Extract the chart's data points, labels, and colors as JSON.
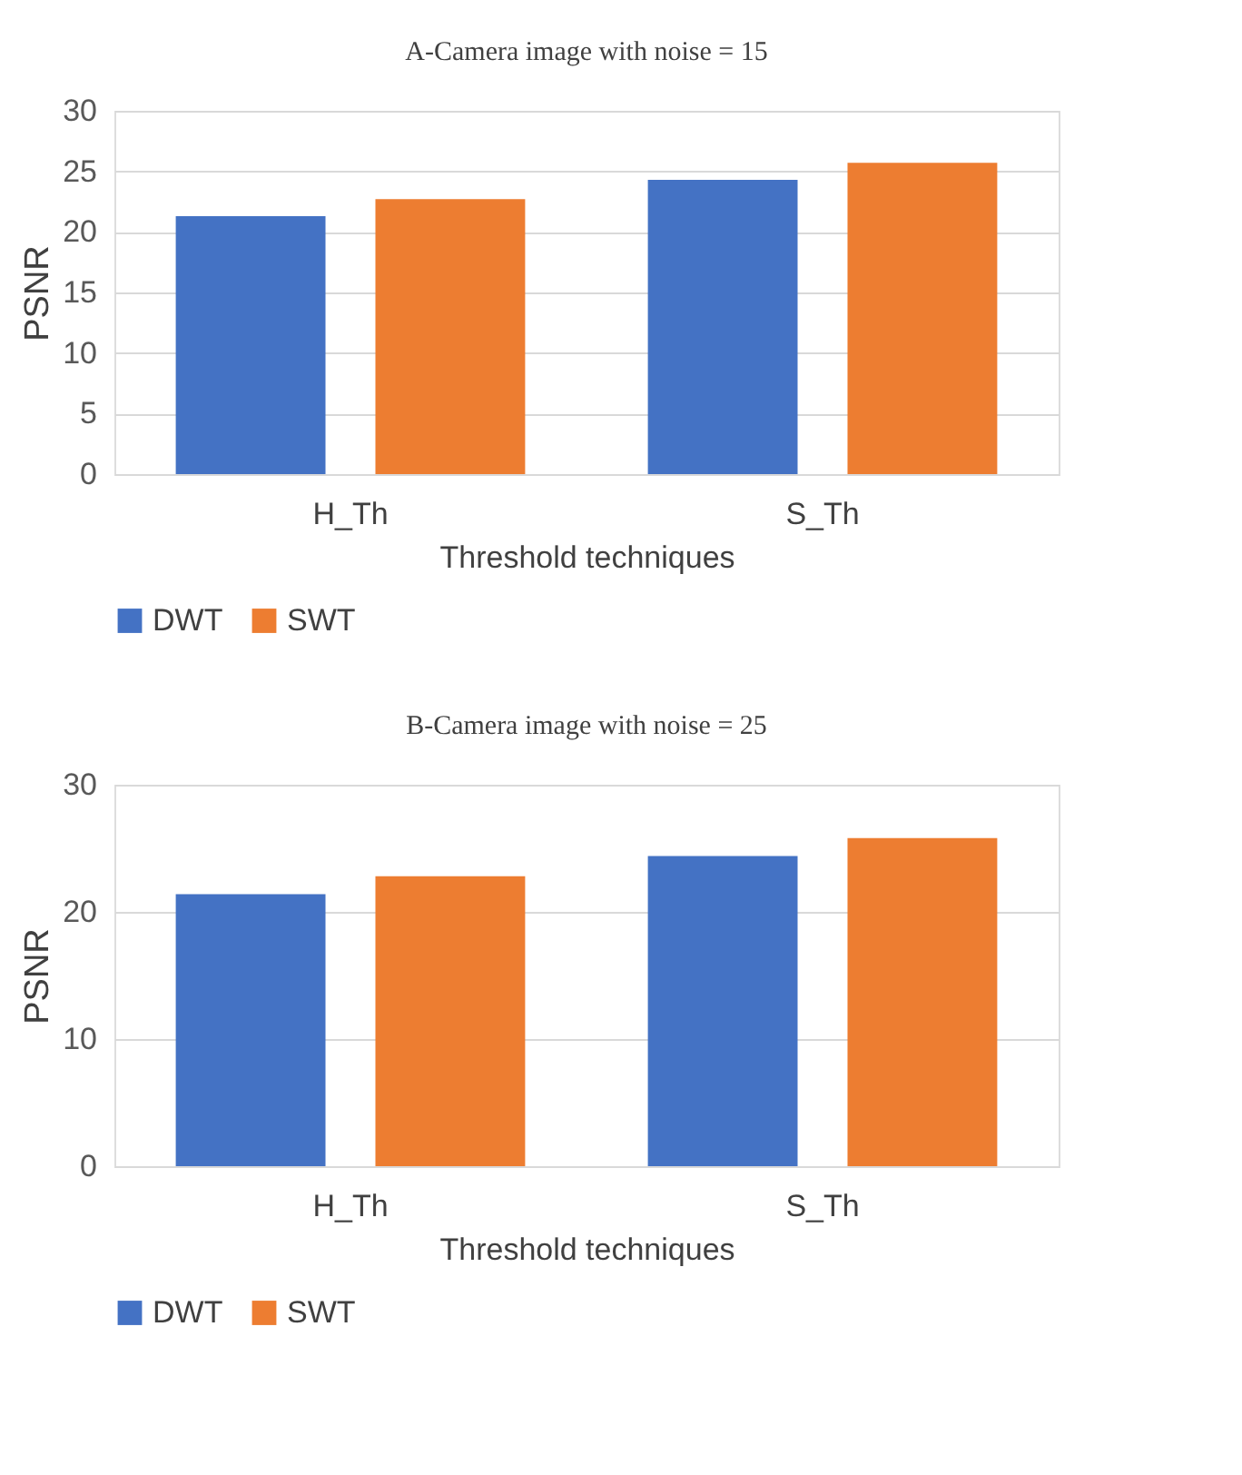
{
  "chart_data": [
    {
      "type": "bar",
      "title": "A-Camera image with noise = 15",
      "xlabel": "Threshold techniques",
      "ylabel": "PSNR",
      "categories": [
        "H_Th",
        "S_Th"
      ],
      "series": [
        {
          "name": "DWT",
          "color": "#4472c4",
          "values": [
            21.3,
            24.3
          ]
        },
        {
          "name": "SWT",
          "color": "#ed7d31",
          "values": [
            22.7,
            25.7
          ]
        }
      ],
      "ylim": [
        0,
        30
      ],
      "yticks": [
        0,
        5,
        10,
        15,
        20,
        25,
        30
      ],
      "grid": "y",
      "legend": "bottom"
    },
    {
      "type": "bar",
      "title": "B-Camera image with noise = 25",
      "xlabel": "Threshold techniques",
      "ylabel": "PSNR",
      "categories": [
        "H_Th",
        "S_Th"
      ],
      "series": [
        {
          "name": "DWT",
          "color": "#4472c4",
          "values": [
            21.4,
            24.4
          ]
        },
        {
          "name": "SWT",
          "color": "#ed7d31",
          "values": [
            22.8,
            25.8
          ]
        }
      ],
      "ylim": [
        0,
        30
      ],
      "yticks": [
        0,
        10,
        20,
        30
      ],
      "grid": "y",
      "legend": "bottom"
    }
  ]
}
